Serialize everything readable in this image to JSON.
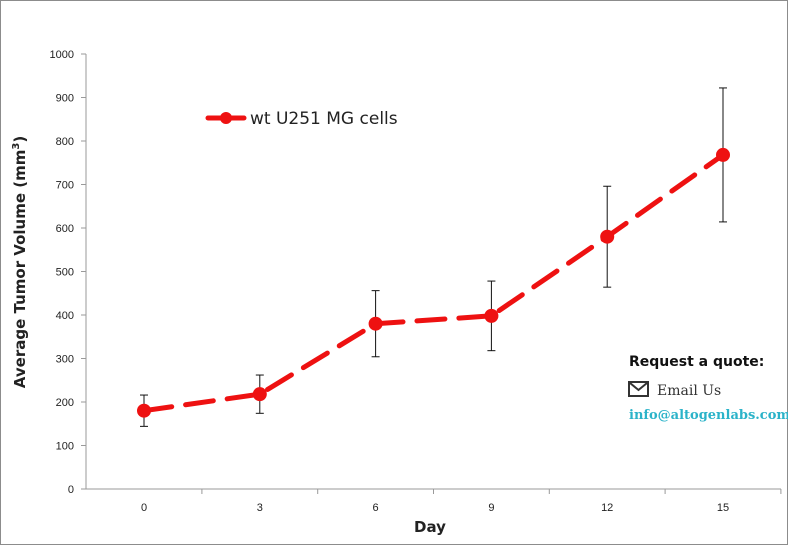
{
  "chart_data": {
    "type": "line",
    "x": [
      0,
      3,
      6,
      9,
      12,
      15
    ],
    "categories": [
      "0",
      "3",
      "6",
      "9",
      "12",
      "15"
    ],
    "series": [
      {
        "name": "wt U251 MG cells",
        "values": [
          180,
          218,
          380,
          398,
          580,
          768
        ],
        "error": [
          36,
          44,
          76,
          80,
          116,
          154
        ],
        "color": "#ee1111"
      }
    ],
    "xlabel": "Day",
    "ylabel": "Average Tumor Volume (mm",
    "ylabel_superscript": "3",
    "ylabel_suffix": ")",
    "ylim": [
      0,
      1000
    ],
    "yticks": [
      "0",
      "100",
      "200",
      "300",
      "400",
      "500",
      "600",
      "700",
      "800",
      "900",
      "1000"
    ],
    "legend_position": "top-left",
    "grid": false
  },
  "quote": {
    "title": "Request a quote:",
    "email_label": "Email Us",
    "email": "info@altogenlabs.com",
    "email_icon": "envelope-icon",
    "link_color": "#2bb3c9"
  }
}
